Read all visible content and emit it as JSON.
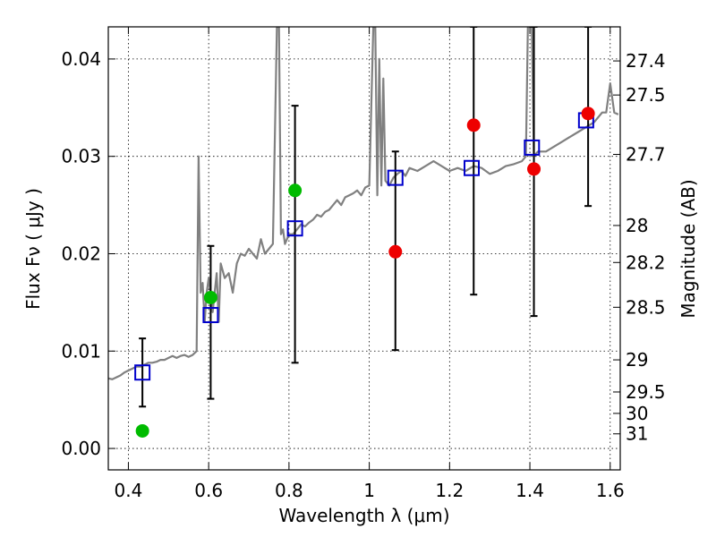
{
  "chart_data": {
    "type": "scatter",
    "xlabel": "Wavelength  λ (μm)",
    "ylabel": "Flux  Fν  ( μJy )",
    "y2label": "Magnitude (AB)",
    "xlim": [
      0.35,
      1.625
    ],
    "ylim": [
      -0.0022,
      0.0433
    ],
    "grid": true,
    "x_ticks": [
      0.4,
      0.6,
      0.8,
      1.0,
      1.2,
      1.4,
      1.6
    ],
    "x_tick_labels": [
      "0.4",
      "0.6",
      "0.8",
      "1",
      "1.2",
      "1.4",
      "1.6"
    ],
    "y_ticks": [
      0.0,
      0.01,
      0.02,
      0.03,
      0.04
    ],
    "y_tick_labels": [
      "0.00",
      "0.01",
      "0.02",
      "0.03",
      "0.04"
    ],
    "mag_ticks": [
      {
        "label": "27.4",
        "flux": 0.0398
      },
      {
        "label": "27.5",
        "flux": 0.0363
      },
      {
        "label": "27.7",
        "flux": 0.0302
      },
      {
        "label": "28",
        "flux": 0.0229
      },
      {
        "label": "28.2",
        "flux": 0.0191
      },
      {
        "label": "28.5",
        "flux": 0.0145
      },
      {
        "label": "29",
        "flux": 0.0091
      },
      {
        "label": "29.5",
        "flux": 0.0058
      },
      {
        "label": "30",
        "flux": 0.0036
      },
      {
        "label": "31",
        "flux": 0.0015
      }
    ],
    "series": [
      {
        "type": "line",
        "color": "#808080",
        "x": [
          0.35,
          0.36,
          0.37,
          0.38,
          0.39,
          0.4,
          0.41,
          0.42,
          0.43,
          0.44,
          0.45,
          0.46,
          0.47,
          0.48,
          0.49,
          0.5,
          0.51,
          0.52,
          0.53,
          0.54,
          0.55,
          0.56,
          0.57,
          0.575,
          0.58,
          0.585,
          0.59,
          0.595,
          0.6,
          0.61,
          0.62,
          0.625,
          0.63,
          0.64,
          0.65,
          0.66,
          0.67,
          0.68,
          0.69,
          0.7,
          0.71,
          0.72,
          0.73,
          0.74,
          0.75,
          0.76,
          0.77,
          0.775,
          0.78,
          0.785,
          0.79,
          0.8,
          0.81,
          0.82,
          0.83,
          0.84,
          0.85,
          0.86,
          0.87,
          0.88,
          0.89,
          0.9,
          0.91,
          0.92,
          0.93,
          0.94,
          0.95,
          0.96,
          0.97,
          0.98,
          0.99,
          1.0,
          1.01,
          1.015,
          1.02,
          1.025,
          1.03,
          1.035,
          1.04,
          1.05,
          1.06,
          1.07,
          1.08,
          1.09,
          1.1,
          1.12,
          1.14,
          1.16,
          1.18,
          1.2,
          1.22,
          1.24,
          1.26,
          1.28,
          1.3,
          1.32,
          1.34,
          1.36,
          1.38,
          1.39,
          1.395,
          1.4,
          1.405,
          1.41,
          1.42,
          1.44,
          1.46,
          1.48,
          1.5,
          1.52,
          1.54,
          1.56,
          1.58,
          1.59,
          1.6,
          1.61,
          1.62
        ],
        "y": [
          0.0072,
          0.0071,
          0.0073,
          0.0075,
          0.0078,
          0.008,
          0.0082,
          0.0084,
          0.0084,
          0.0086,
          0.0088,
          0.0088,
          0.0089,
          0.0091,
          0.0091,
          0.0093,
          0.0095,
          0.0093,
          0.0095,
          0.0096,
          0.0094,
          0.0096,
          0.01,
          0.03,
          0.016,
          0.017,
          0.013,
          0.016,
          0.0175,
          0.014,
          0.018,
          0.013,
          0.019,
          0.0175,
          0.018,
          0.016,
          0.019,
          0.02,
          0.0198,
          0.0205,
          0.02,
          0.0195,
          0.0215,
          0.02,
          0.0205,
          0.021,
          0.0433,
          0.0433,
          0.022,
          0.0225,
          0.021,
          0.022,
          0.022,
          0.0225,
          0.023,
          0.0228,
          0.0232,
          0.0235,
          0.024,
          0.0238,
          0.0243,
          0.0245,
          0.025,
          0.0255,
          0.025,
          0.0258,
          0.026,
          0.0262,
          0.0265,
          0.026,
          0.0268,
          0.027,
          0.0433,
          0.0433,
          0.026,
          0.04,
          0.027,
          0.038,
          0.0275,
          0.027,
          0.0278,
          0.0282,
          0.0285,
          0.028,
          0.0288,
          0.0285,
          0.029,
          0.0295,
          0.029,
          0.0285,
          0.0288,
          0.0285,
          0.029,
          0.0288,
          0.0282,
          0.0285,
          0.029,
          0.0292,
          0.0295,
          0.03,
          0.0433,
          0.0433,
          0.0433,
          0.03,
          0.0305,
          0.0305,
          0.031,
          0.0315,
          0.032,
          0.0325,
          0.033,
          0.0335,
          0.0345,
          0.0345,
          0.0375,
          0.0345,
          0.0343
        ]
      },
      {
        "type": "scatter",
        "marker": "open-square",
        "color": "#0000cc",
        "x": [
          0.435,
          0.605,
          0.815,
          1.065,
          1.255,
          1.405,
          1.54
        ],
        "y": [
          0.0078,
          0.0137,
          0.0226,
          0.0278,
          0.0288,
          0.0309,
          0.0337
        ]
      },
      {
        "type": "scatter",
        "marker": "filled-circle",
        "color": "#00bb00",
        "x": [
          0.435,
          0.605,
          0.815
        ],
        "y": [
          0.0018,
          0.0155,
          0.0265
        ],
        "yerr_low": [
          0.0043,
          0.0051,
          0.0088
        ],
        "yerr_high": [
          0.0113,
          0.0208,
          0.0352
        ]
      },
      {
        "type": "scatter",
        "marker": "filled-circle",
        "color": "#ee0000",
        "x": [
          1.065,
          1.26,
          1.41,
          1.545
        ],
        "y": [
          0.0202,
          0.0332,
          0.0287,
          0.0344
        ],
        "yerr_low": [
          0.0101,
          0.0158,
          0.0136,
          0.0249
        ],
        "yerr_high": [
          0.0305,
          0.0433,
          0.0433,
          0.0433
        ]
      }
    ]
  }
}
